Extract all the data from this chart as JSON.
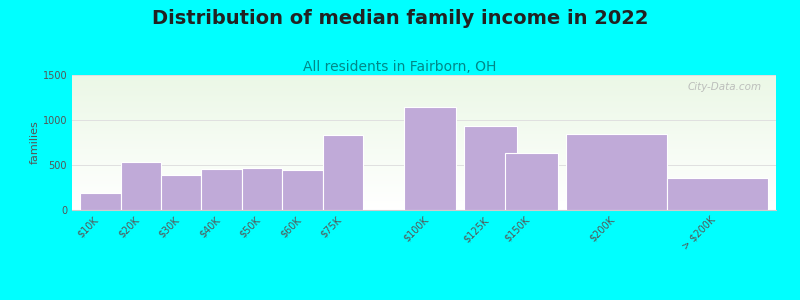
{
  "title": "Distribution of median family income in 2022",
  "subtitle": "All residents in Fairborn, OH",
  "ylabel": "families",
  "background_color": "#00FFFF",
  "bar_color": "#c0aad8",
  "bar_edge_color": "#ffffff",
  "categories": [
    "$10K",
    "$20K",
    "$30K",
    "$40K",
    "$50K",
    "$60K",
    "$75K",
    "$100K",
    "$125K",
    "$150K",
    "$200K",
    "> $200K"
  ],
  "values": [
    190,
    530,
    390,
    460,
    470,
    450,
    830,
    1140,
    930,
    630,
    840,
    360
  ],
  "x_positions": [
    0,
    1,
    2,
    3,
    4,
    5,
    6,
    8,
    9.5,
    10.5,
    12,
    14.5
  ],
  "bar_widths": [
    1,
    1,
    1,
    1,
    1,
    1,
    1,
    1.3,
    1.3,
    1.3,
    2.5,
    2.5
  ],
  "ylim": [
    0,
    1500
  ],
  "yticks": [
    0,
    500,
    1000,
    1500
  ],
  "watermark": "City-Data.com",
  "title_fontsize": 14,
  "subtitle_fontsize": 10,
  "ylabel_fontsize": 8,
  "tick_fontsize": 7
}
